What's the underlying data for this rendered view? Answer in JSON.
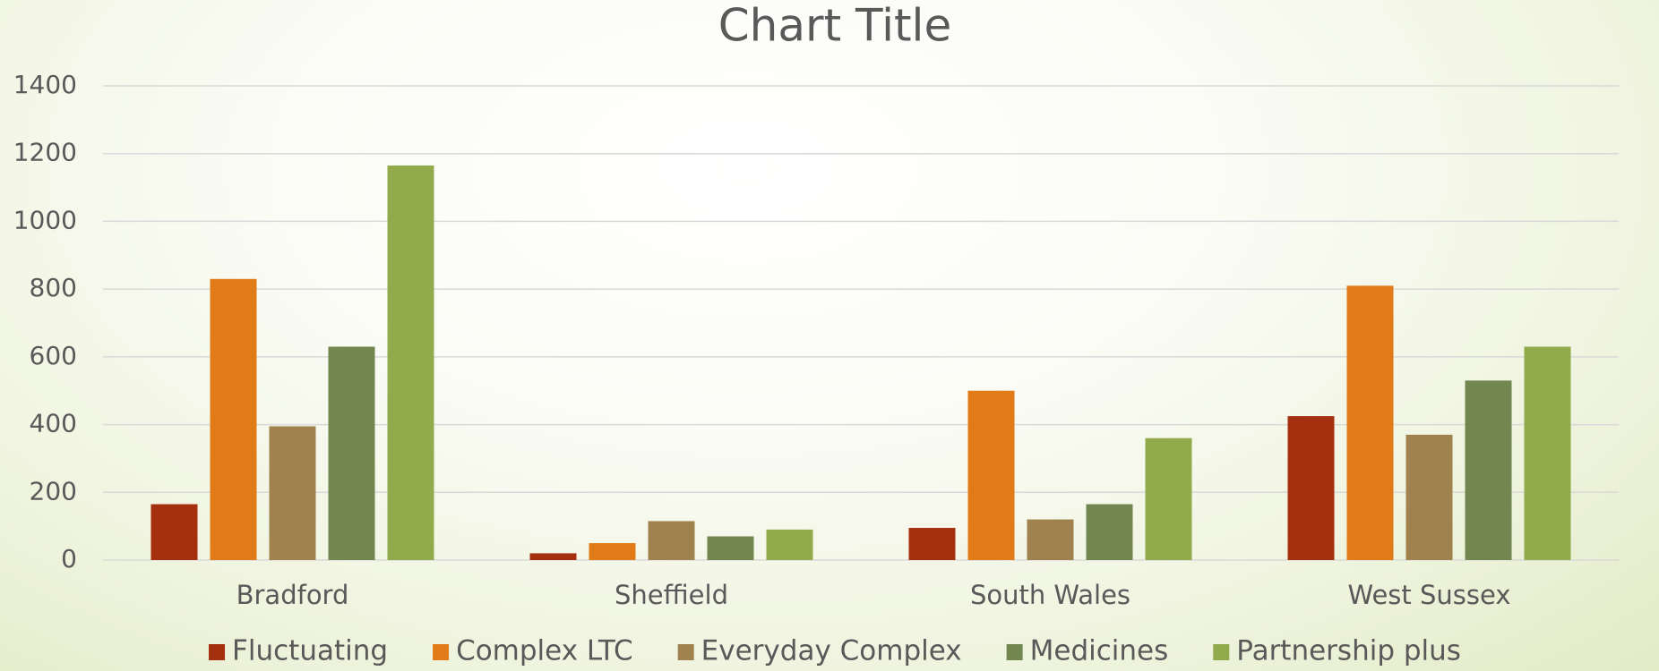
{
  "chart_data": {
    "type": "bar",
    "title": "Chart Title",
    "categories": [
      "Bradford",
      "Sheffield",
      "South Wales",
      "West Sussex"
    ],
    "series": [
      {
        "name": "Fluctuating",
        "color": "#a5300f",
        "values": [
          165,
          20,
          95,
          425
        ]
      },
      {
        "name": "Complex LTC",
        "color": "#e07b18",
        "values": [
          830,
          50,
          500,
          810
        ]
      },
      {
        "name": "Everyday Complex",
        "color": "#a0824f",
        "values": [
          395,
          115,
          120,
          370
        ]
      },
      {
        "name": "Medicines",
        "color": "#71874f",
        "values": [
          630,
          70,
          165,
          530
        ]
      },
      {
        "name": "Partnership plus",
        "color": "#91ab4c",
        "values": [
          1165,
          90,
          360,
          630
        ]
      }
    ],
    "ylim": [
      0,
      1400
    ],
    "yticks": [
      0,
      200,
      400,
      600,
      800,
      1000,
      1200,
      1400
    ],
    "grid": true,
    "legend": "bottom"
  }
}
